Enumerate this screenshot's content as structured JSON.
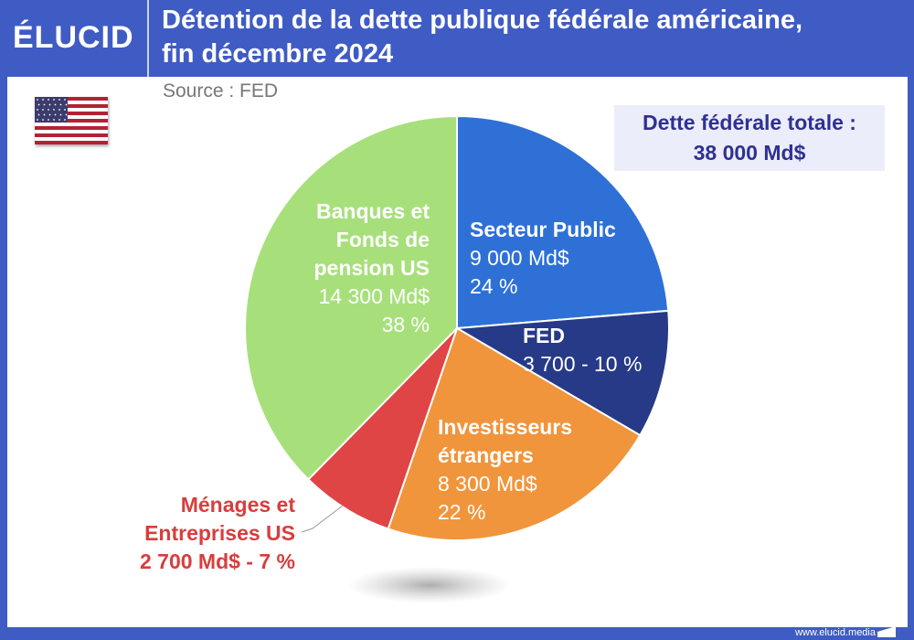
{
  "header": {
    "logo": "ÉLUCID",
    "title_lines": [
      "Détention de la dette publique fédérale américaine,",
      "fin décembre 2024"
    ],
    "source": "Source : FED"
  },
  "total_box": {
    "lines": [
      "Dette fédérale totale :",
      "38 000 Md$"
    ]
  },
  "footer": {
    "url": "www.elucid.media"
  },
  "chart_data": {
    "type": "pie",
    "unit": "Md$",
    "total": 38000,
    "start_angle": "12 o'clock",
    "direction": "clockwise",
    "slices": [
      {
        "name": "Secteur Public",
        "value": 9000,
        "percent": 24,
        "color": "#2E70D6",
        "label_lines": [
          "Secteur Public",
          "9 000 Md$",
          "24 %"
        ]
      },
      {
        "name": "FED",
        "value": 3700,
        "percent": 10,
        "color": "#263A87",
        "label_lines": [
          "FED",
          "3 700 - 10 %"
        ]
      },
      {
        "name": "Investisseurs étrangers",
        "value": 8300,
        "percent": 22,
        "color": "#F0953B",
        "label_lines": [
          "Investisseurs",
          "étrangers",
          "8 300 Md$",
          "22 %"
        ]
      },
      {
        "name": "Ménages et Entreprises US",
        "value": 2700,
        "percent": 7,
        "color": "#E04545",
        "label_lines": [
          "Ménages et",
          "Entreprises US",
          "2 700 Md$ - 7 %"
        ]
      },
      {
        "name": "Banques et Fonds de pension US",
        "value": 14300,
        "percent": 38,
        "color": "#A7E07B",
        "label_lines": [
          "Banques et",
          "Fonds de",
          "pension US",
          "14 300 Md$",
          "38 %"
        ]
      }
    ]
  }
}
